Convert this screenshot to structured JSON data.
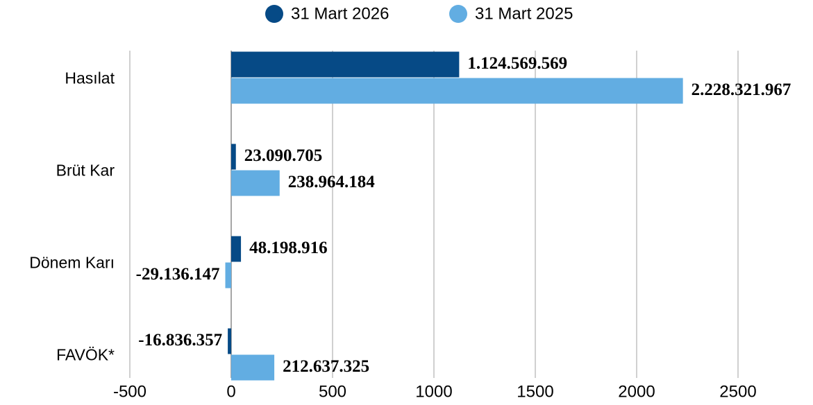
{
  "chart_data": {
    "type": "bar",
    "orientation": "horizontal",
    "categories": [
      "Hasılat",
      "Brüt Kar",
      "Dönem Karı",
      "FAVÖK*"
    ],
    "series": [
      {
        "name": "31 Mart 2026",
        "color": "#064a86",
        "values": [
          1124.569569,
          23.090705,
          48.198916,
          -16.836357
        ],
        "value_labels": [
          "1.124.569.569",
          "23.090.705",
          "48.198.916",
          "-16.836.357"
        ]
      },
      {
        "name": "31 Mart 2025",
        "color": "#62ade2",
        "values": [
          2228.321967,
          238.964184,
          -29.136147,
          212.637325
        ],
        "value_labels": [
          "2.228.321.967",
          "238.964.184",
          "-29.136.147",
          "212.637.325"
        ]
      }
    ],
    "xlim": [
      -500,
      2500
    ],
    "xticks": [
      -500,
      0,
      500,
      1000,
      1500,
      2000,
      2500
    ],
    "grid": true,
    "legend": "top"
  }
}
